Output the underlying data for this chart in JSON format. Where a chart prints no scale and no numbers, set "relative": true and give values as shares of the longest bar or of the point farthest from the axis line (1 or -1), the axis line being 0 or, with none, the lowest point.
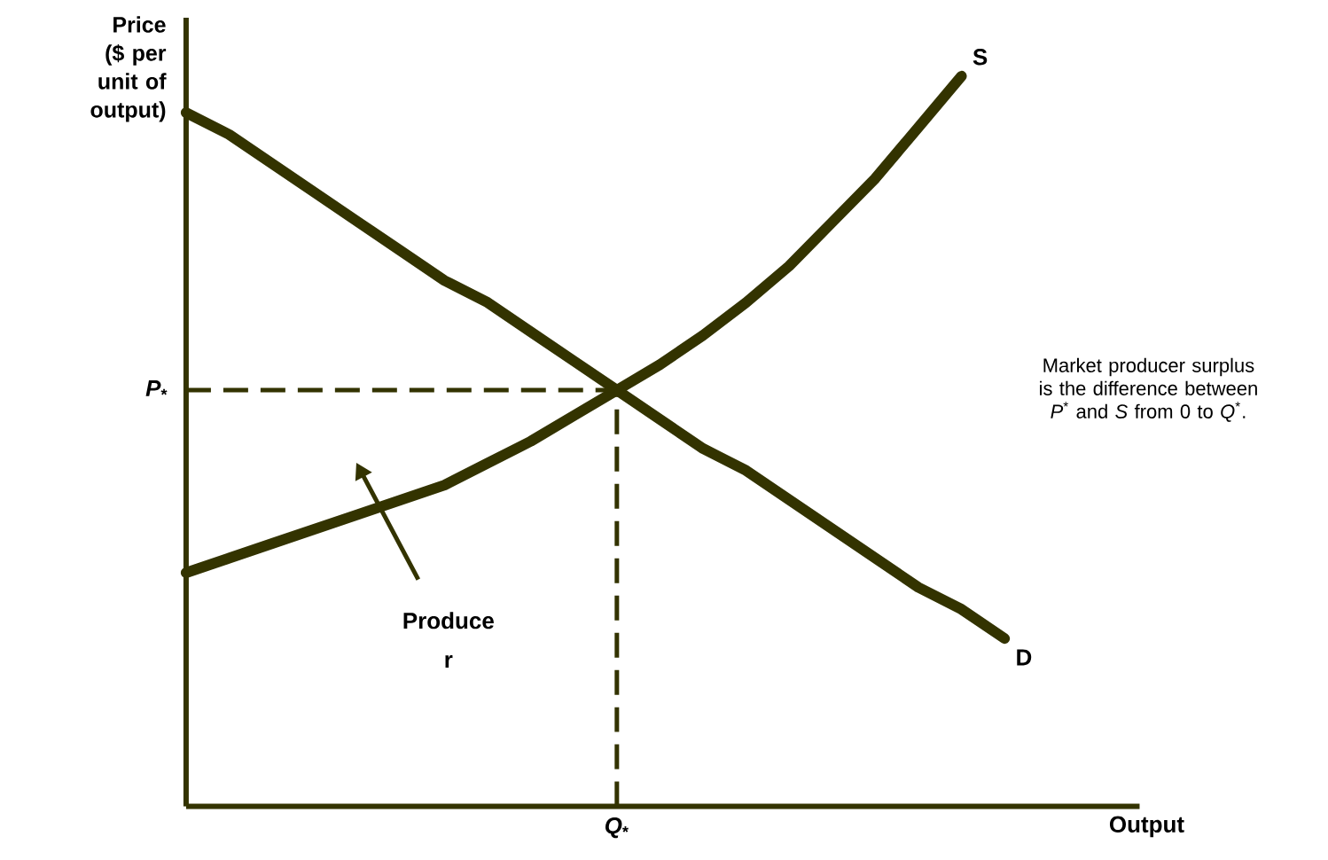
{
  "chart_data": {
    "type": "line",
    "relative": true,
    "xlabel": "Output",
    "ylabel": "Price ($ per unit of output)",
    "categories": [
      null,
      null,
      null,
      null,
      null,
      null,
      null,
      null,
      null,
      null,
      null,
      null,
      null,
      null,
      null,
      null,
      null,
      null,
      null,
      null
    ],
    "series": [
      {
        "name": "S",
        "color": "#333300",
        "values": [
          0.32,
          0.34,
          0.36,
          0.38,
          0.4,
          0.42,
          0.44,
          0.47,
          0.5,
          0.535,
          0.57,
          0.605,
          0.645,
          0.69,
          0.74,
          0.8,
          0.86,
          0.93,
          1.0,
          null
        ]
      },
      {
        "name": "D",
        "color": "#333300",
        "values": [
          0.95,
          0.92,
          0.88,
          0.84,
          0.8,
          0.76,
          0.72,
          0.69,
          0.65,
          0.61,
          0.57,
          0.53,
          0.49,
          0.46,
          0.42,
          0.38,
          0.34,
          0.3,
          0.27,
          0.23
        ]
      }
    ],
    "ref_lines": [
      {
        "axis": "y",
        "value": 0.57,
        "label": "*P*$_{*}$",
        "color": "#333300",
        "line_style": "dashed"
      }
    ],
    "annotations": [
      "Produce r",
      "*Q*$_{*}$",
      "Market producer surplus is the difference between *P*$^{*}$ and *S* from 0 to *Q*$^{*}$."
    ],
    "marker": "none",
    "line_style": "solid"
  }
}
